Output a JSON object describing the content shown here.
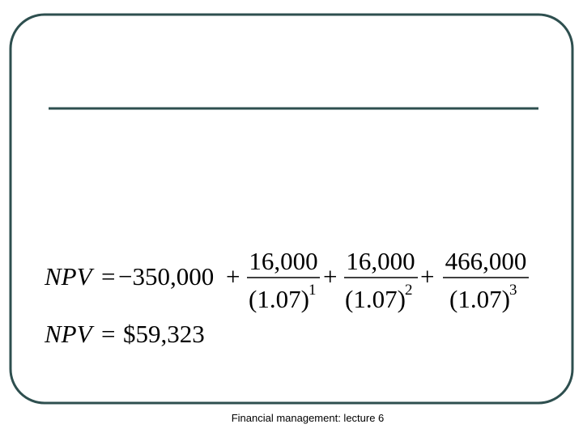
{
  "equations": [
    {
      "lhs": "NPV",
      "equals": "=",
      "initial": "−350,000",
      "plus": "+",
      "terms": [
        {
          "numerator": "16,000",
          "base": "(1.07)",
          "exponent": "1"
        },
        {
          "numerator": "16,000",
          "base": "(1.07)",
          "exponent": "2"
        },
        {
          "numerator": "466,000",
          "base": "(1.07)",
          "exponent": "3"
        }
      ]
    },
    {
      "lhs": "NPV",
      "equals": "=",
      "result": "$59,323"
    }
  ],
  "footer": "Financial management: lecture 6"
}
